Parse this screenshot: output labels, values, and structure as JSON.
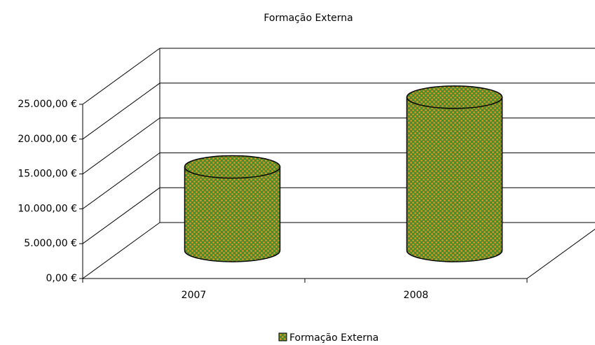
{
  "chart_data": {
    "type": "bar3d_cylinder",
    "title": "Formação Externa",
    "categories": [
      "2007",
      "2008"
    ],
    "series": [
      {
        "name": "Formação Externa",
        "color": "#4f8a2e",
        "dot_color": "#e59a1f",
        "values": [
          12000,
          22000
        ]
      }
    ],
    "ylim": [
      0,
      25000
    ],
    "yticks": [
      {
        "value": 0,
        "label": "0,00 €"
      },
      {
        "value": 5000,
        "label": "5.000,00 €"
      },
      {
        "value": 10000,
        "label": "10.000,00 €"
      },
      {
        "value": 15000,
        "label": "15.000,00 €"
      },
      {
        "value": 20000,
        "label": "20.000,00 €"
      },
      {
        "value": 25000,
        "label": "25.000,00 €"
      }
    ],
    "grid": true,
    "legend": "bottom"
  }
}
